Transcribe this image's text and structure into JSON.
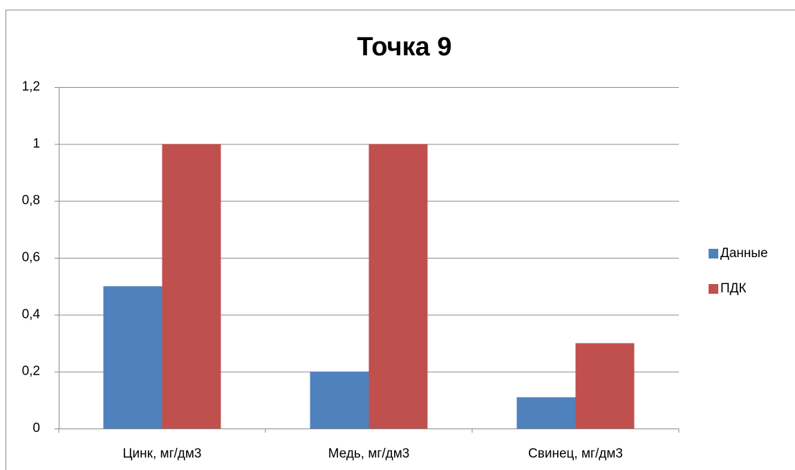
{
  "chart_data": {
    "type": "bar",
    "title": "Точка 9",
    "categories": [
      "Цинк, мг/дм3",
      "Медь, мг/дм3",
      "Свинец, мг/дм3"
    ],
    "series": [
      {
        "name": "Данные",
        "color": "#4f81bd",
        "values": [
          0.5,
          0.2,
          0.11
        ]
      },
      {
        "name": "ПДК",
        "color": "#c0504d",
        "values": [
          1,
          1,
          0.3
        ]
      }
    ],
    "ylim": [
      0,
      1.2
    ],
    "yticks": [
      0,
      {
        "value": 0.2,
        "label": "0,2"
      },
      {
        "value": 0.4,
        "label": "0,4"
      },
      {
        "value": 0.6,
        "label": "0,6"
      },
      {
        "value": 0.8,
        "label": "0,8"
      },
      1,
      {
        "value": 1.2,
        "label": "1,2"
      }
    ],
    "grid": true,
    "legend": "right"
  }
}
